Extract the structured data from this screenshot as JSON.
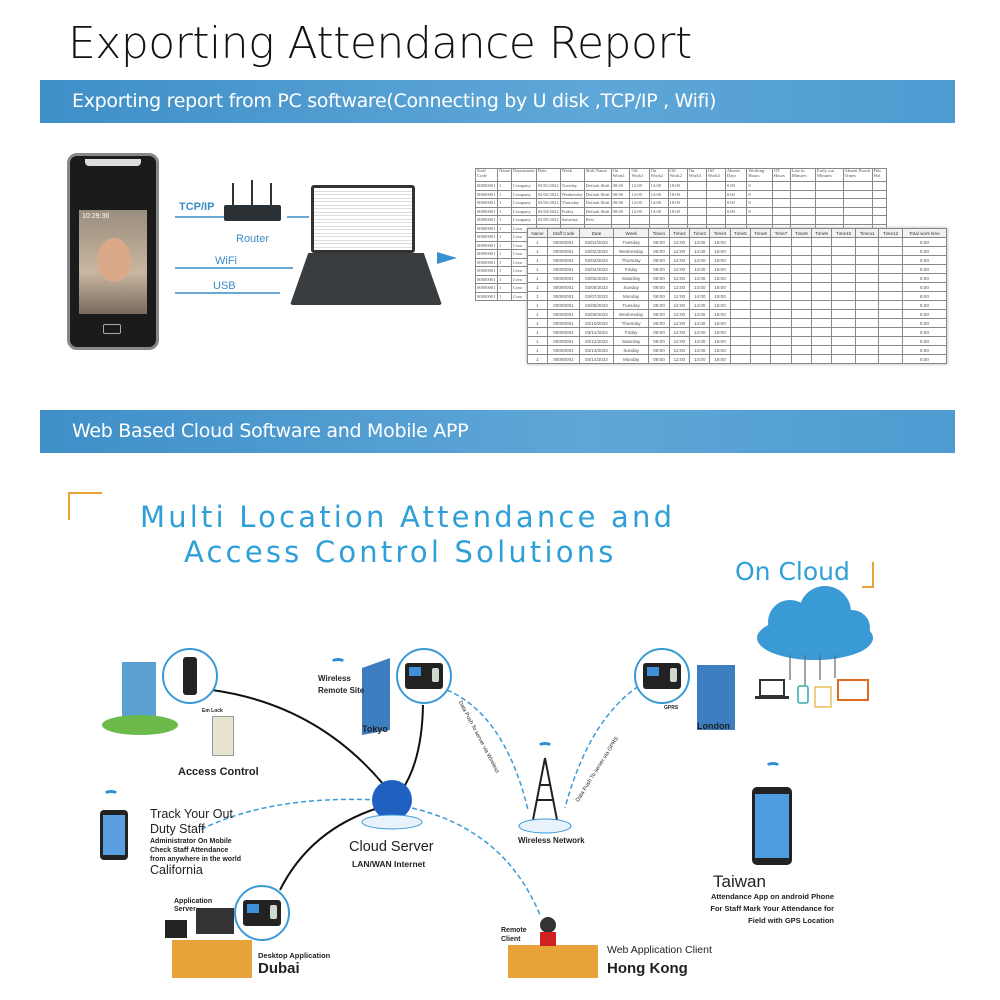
{
  "title": "Exporting Attendance Report",
  "section1": {
    "band": "Exporting report from PC software(Connecting by U disk ,TCP/IP , Wifi)",
    "connections": {
      "tcpip": "TCP/IP",
      "router": "Router",
      "wifi": "WiFi",
      "usb": "USB"
    },
    "device_screen_time": "10:29:36"
  },
  "back_table": {
    "headers": [
      "Staff Code",
      "Name",
      "Department",
      "Date",
      "Week",
      "Shift Name",
      "On Work1",
      "Off Work1",
      "On Work2",
      "Off Work2",
      "On Work3",
      "Off Work3",
      "Absent Days",
      "Working Hours",
      "OT Hours",
      "Late in Minutes",
      "Early out Minutes",
      "Absent Punch Times",
      "Pub Hol"
    ],
    "rows": [
      [
        "00000001",
        "1",
        "Company",
        "03/01/2022",
        "Tuesday",
        "Default Shift",
        "08:00",
        "12:00",
        "14:00",
        "18:00",
        "",
        "",
        "0.00",
        "8",
        "",
        "",
        "",
        "",
        ""
      ],
      [
        "00000001",
        "1",
        "Company",
        "03/02/2022",
        "Wednesday",
        "Default Shift",
        "08:00",
        "12:00",
        "14:00",
        "18:00",
        "",
        "",
        "0.00",
        "8",
        "",
        "",
        "",
        "",
        ""
      ],
      [
        "00000001",
        "1",
        "Company",
        "03/03/2022",
        "Thursday",
        "Default Shift",
        "08:00",
        "12:00",
        "14:00",
        "18:00",
        "",
        "",
        "0.00",
        "8",
        "",
        "",
        "",
        "",
        ""
      ],
      [
        "00000001",
        "1",
        "Company",
        "03/04/2022",
        "Friday",
        "Default Shift",
        "08:00",
        "12:00",
        "14:00",
        "18:00",
        "",
        "",
        "0.00",
        "8",
        "",
        "",
        "",
        "",
        ""
      ],
      [
        "00000001",
        "1",
        "Company",
        "03/05/2022",
        "Saturday",
        "Rest",
        "",
        "",
        "",
        "",
        "",
        "",
        "",
        "",
        "",
        "",
        "",
        "",
        ""
      ],
      [
        "00000001",
        "1",
        "Com",
        "",
        "",
        "",
        "",
        "",
        "",
        "",
        "",
        "",
        "",
        "",
        "",
        "",
        "",
        "",
        ""
      ],
      [
        "00000001",
        "1",
        "Com",
        "",
        "",
        "",
        "",
        "",
        "",
        "",
        "",
        "",
        "",
        "",
        "",
        "",
        "",
        "",
        ""
      ],
      [
        "00000001",
        "1",
        "Com",
        "",
        "",
        "",
        "",
        "",
        "",
        "",
        "",
        "",
        "",
        "",
        "",
        "",
        "",
        "",
        ""
      ],
      [
        "00000001",
        "1",
        "Com",
        "",
        "",
        "",
        "",
        "",
        "",
        "",
        "",
        "",
        "",
        "",
        "",
        "",
        "",
        "",
        ""
      ],
      [
        "00000001",
        "1",
        "Com",
        "",
        "",
        "",
        "",
        "",
        "",
        "",
        "",
        "",
        "",
        "",
        "",
        "",
        "",
        "",
        ""
      ],
      [
        "00000001",
        "1",
        "Com",
        "",
        "",
        "",
        "",
        "",
        "",
        "",
        "",
        "",
        "",
        "",
        "",
        "",
        "",
        "",
        ""
      ],
      [
        "00000001",
        "1",
        "Com",
        "",
        "",
        "",
        "",
        "",
        "",
        "",
        "",
        "",
        "",
        "",
        "",
        "",
        "",
        "",
        ""
      ],
      [
        "00000001",
        "1",
        "Com",
        "",
        "",
        "",
        "",
        "",
        "",
        "",
        "",
        "",
        "",
        "",
        "",
        "",
        "",
        "",
        ""
      ],
      [
        "00000001",
        "1",
        "Com",
        "",
        "",
        "",
        "",
        "",
        "",
        "",
        "",
        "",
        "",
        "",
        "",
        "",
        "",
        "",
        ""
      ]
    ]
  },
  "front_table": {
    "headers": [
      "Name",
      "Staff Code",
      "Date",
      "Week",
      "Time1",
      "Time2",
      "Time3",
      "Time4",
      "Time5",
      "Time6",
      "Time7",
      "Time8",
      "Time9",
      "Time10",
      "Time11",
      "Time12",
      "Total work time"
    ],
    "rows": [
      [
        "1",
        "00000001",
        "03/01/2022",
        "Tuesday",
        "08:00",
        "12:00",
        "14:00",
        "18:00",
        "",
        "",
        "",
        "",
        "",
        "",
        "",
        "",
        "8.00"
      ],
      [
        "1",
        "00000001",
        "03/02/2022",
        "Wednesday",
        "08:00",
        "12:00",
        "14:00",
        "18:00",
        "",
        "",
        "",
        "",
        "",
        "",
        "",
        "",
        "8.00"
      ],
      [
        "1",
        "00000001",
        "03/03/2022",
        "Thursday",
        "08:00",
        "12:00",
        "14:00",
        "18:00",
        "",
        "",
        "",
        "",
        "",
        "",
        "",
        "",
        "8.00"
      ],
      [
        "1",
        "00000001",
        "03/04/2022",
        "Friday",
        "08:00",
        "12:00",
        "14:00",
        "18:00",
        "",
        "",
        "",
        "",
        "",
        "",
        "",
        "",
        "8.00"
      ],
      [
        "1",
        "00000001",
        "03/05/2022",
        "Saturday",
        "08:00",
        "12:00",
        "14:00",
        "18:00",
        "",
        "",
        "",
        "",
        "",
        "",
        "",
        "",
        "8.00"
      ],
      [
        "1",
        "00000001",
        "03/06/2022",
        "Sunday",
        "08:00",
        "12:00",
        "14:00",
        "18:00",
        "",
        "",
        "",
        "",
        "",
        "",
        "",
        "",
        "8.00"
      ],
      [
        "1",
        "00000001",
        "03/07/2022",
        "Monday",
        "08:00",
        "12:00",
        "14:00",
        "18:00",
        "",
        "",
        "",
        "",
        "",
        "",
        "",
        "",
        "8.00"
      ],
      [
        "1",
        "00000001",
        "03/08/2022",
        "Tuesday",
        "08:00",
        "12:00",
        "14:00",
        "18:00",
        "",
        "",
        "",
        "",
        "",
        "",
        "",
        "",
        "8.00"
      ],
      [
        "1",
        "00000001",
        "03/09/2022",
        "Wednesday",
        "08:00",
        "12:00",
        "14:00",
        "18:00",
        "",
        "",
        "",
        "",
        "",
        "",
        "",
        "",
        "8.00"
      ],
      [
        "1",
        "00000001",
        "03/10/2022",
        "Thursday",
        "08:00",
        "12:00",
        "14:00",
        "18:00",
        "",
        "",
        "",
        "",
        "",
        "",
        "",
        "",
        "8.00"
      ],
      [
        "1",
        "00000001",
        "03/11/2022",
        "Friday",
        "08:00",
        "12:00",
        "14:00",
        "18:00",
        "",
        "",
        "",
        "",
        "",
        "",
        "",
        "",
        "8.00"
      ],
      [
        "1",
        "00000001",
        "03/12/2022",
        "Saturday",
        "08:00",
        "12:00",
        "14:00",
        "18:00",
        "",
        "",
        "",
        "",
        "",
        "",
        "",
        "",
        "8.00"
      ],
      [
        "1",
        "00000001",
        "03/13/2022",
        "Sunday",
        "08:00",
        "12:00",
        "14:00",
        "18:00",
        "",
        "",
        "",
        "",
        "",
        "",
        "",
        "",
        "8.00"
      ],
      [
        "1",
        "00000001",
        "03/14/2022",
        "Monday",
        "08:00",
        "12:00",
        "14:00",
        "18:00",
        "",
        "",
        "",
        "",
        "",
        "",
        "",
        "",
        "8.00"
      ]
    ]
  },
  "section2": {
    "band": "Web Based Cloud Software and Mobile APP",
    "heading_line1": "Multi Location Attendance and",
    "heading_line2": "Access Control Solutions",
    "on_cloud": "On Cloud",
    "access_control": "Access Control",
    "em_lock": "Em Lock",
    "track_line1": "Track Your Out",
    "track_line2": "Duty Staff",
    "admin_lines": [
      "Administrator On Mobile",
      "Check Staff Attendance",
      "from anywhere in the world"
    ],
    "california": "California",
    "wireless_remote_site": [
      "Wireless",
      "Remote Site"
    ],
    "tokyo": "Tokyo",
    "cloud_server": "Cloud Server",
    "lan_wan": "LAN/WAN Internet",
    "push_wireless": "Data Push To server via Wireless",
    "push_gprs": "Data Push To server via GPRS",
    "wireless_network": "Wireless Network",
    "gprs": "GPRS",
    "london": "London",
    "taiwan": "Taiwan",
    "taiwan_lines": [
      "Attendance App on android Phone",
      "For Staff Mark Your Attendance for",
      "Field with GPS Location"
    ],
    "application_server": [
      "Application",
      "Server"
    ],
    "desktop_application": "Desktop Application",
    "dubai": "Dubai",
    "remote_client": [
      "Remote",
      "Client"
    ],
    "web_app_client": "Web Application Client",
    "hong_kong": "Hong Kong"
  },
  "colors": {
    "band": "#4a98d0",
    "heading": "#2f9fd8",
    "accent_orange": "#e8a23a",
    "line_blue": "#3a9ad6"
  }
}
